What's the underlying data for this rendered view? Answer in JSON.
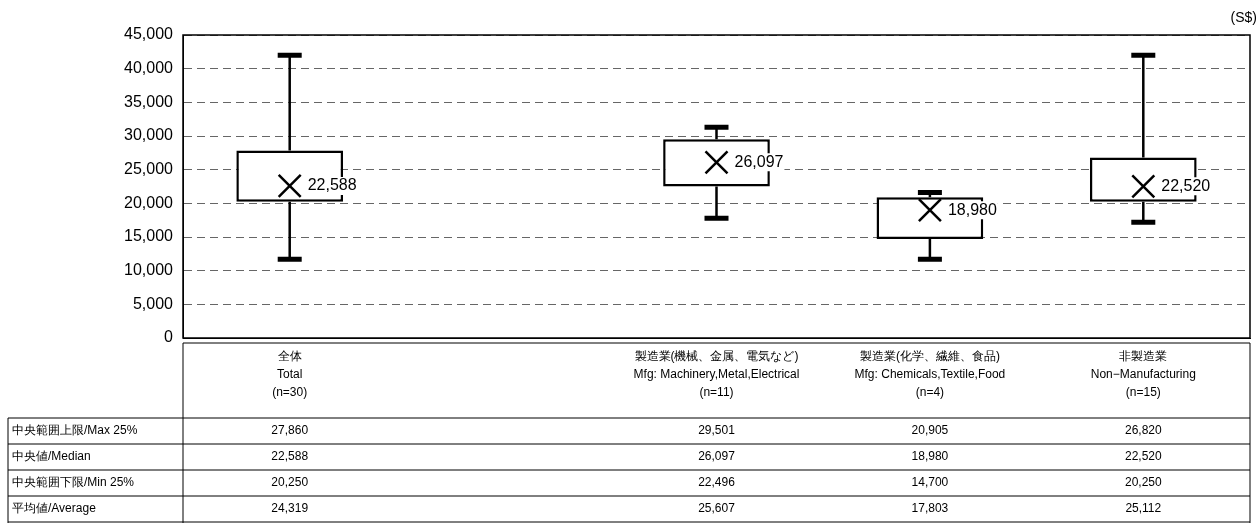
{
  "chart_data": {
    "type": "box",
    "ylabel": "(S$)",
    "categories": [
      "全体\nTotal\n(n=30)",
      null,
      "製造業(機械、金属、電気など)\nMfg: Machinery,Metal,Electrical\n(n=11)",
      "製造業(化学、繊維、食品)\nMfg: Chemicals,Textile,Food\n(n=4)",
      "非製造業\nNon−Manufacturing\n(n=15)"
    ],
    "color": "#000000",
    "boxes": [
      {
        "low": 11700,
        "q1": 20250,
        "median": 22588,
        "q3": 27860,
        "high": 42000
      },
      null,
      {
        "low": 17800,
        "q1": 22496,
        "median": 26097,
        "q3": 29501,
        "high": 31300
      },
      {
        "low": 11700,
        "q1": 14700,
        "median": 18980,
        "q3": 20905,
        "high": 21600
      },
      {
        "low": 17200,
        "q1": 20250,
        "median": 22520,
        "q3": 26820,
        "high": 42000
      }
    ],
    "marker": "cross",
    "value_labels": [
      "22,588",
      null,
      "26,097",
      "18,980",
      "22,520"
    ],
    "annotations": [
      "中央範囲上限/Max 25%",
      "27,860",
      "29,501",
      "20,905",
      "26,820",
      "中央値/Median",
      "22,588",
      "26,097",
      "18,980",
      "22,520",
      "中央範囲下限/Min 25%",
      "20,250",
      "22,496",
      "14,700",
      "20,250",
      "平均値/Average",
      "24,319",
      "25,607",
      "17,803",
      "25,112"
    ],
    "ylim": [
      0,
      45000
    ],
    "yticks": [
      {
        "value": 0,
        "label": "0"
      },
      {
        "value": 5000,
        "label": "5,000"
      },
      {
        "value": 10000,
        "label": "10,000"
      },
      {
        "value": 15000,
        "label": "15,000"
      },
      {
        "value": 20000,
        "label": "20,000"
      },
      {
        "value": 25000,
        "label": "25,000"
      },
      {
        "value": 30000,
        "label": "30,000"
      },
      {
        "value": 35000,
        "label": "35,000"
      },
      {
        "value": 40000,
        "label": "40,000"
      },
      {
        "value": 45000,
        "label": "45,000"
      }
    ],
    "grid": "y"
  }
}
